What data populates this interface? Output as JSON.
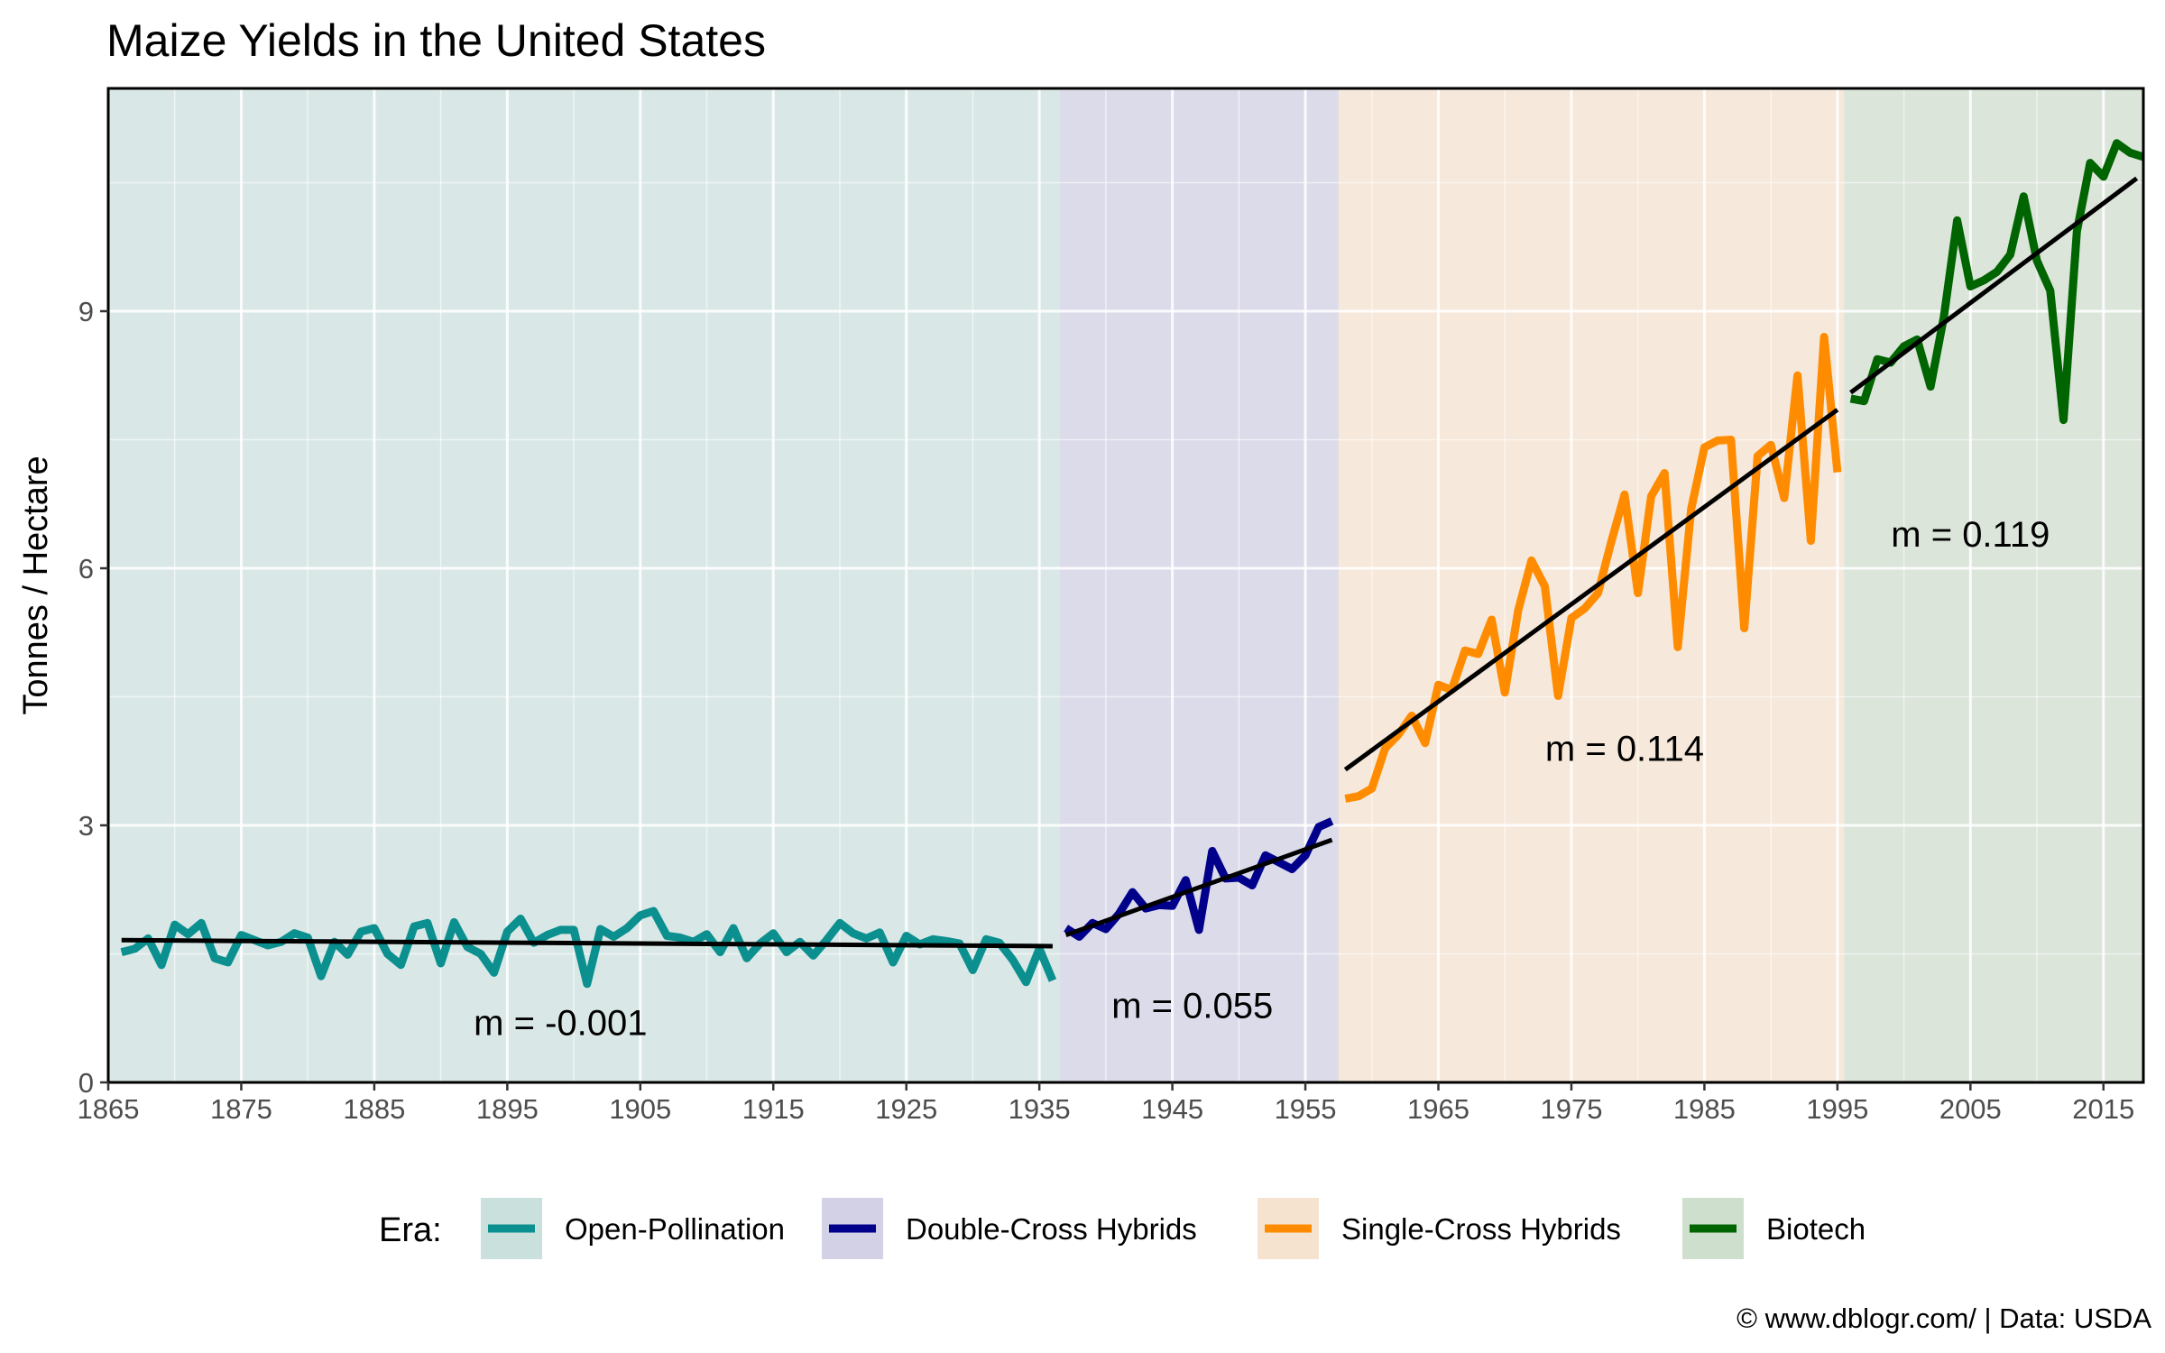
{
  "chart_data": {
    "type": "line",
    "title": "Maize Yields in the United States",
    "xlabel": "",
    "ylabel": "Tonnes / Hectare",
    "xlim": [
      1865,
      2018
    ],
    "ylim": [
      0,
      11.6
    ],
    "x_ticks": [
      1865,
      1875,
      1885,
      1895,
      1905,
      1915,
      1925,
      1935,
      1945,
      1955,
      1965,
      1975,
      1985,
      1995,
      2005,
      2015
    ],
    "y_ticks": [
      0,
      3,
      6,
      9
    ],
    "grid": true,
    "legend_title": "Era:",
    "legend_position": "bottom",
    "caption": "© www.dblogr.com/  |  Data: USDA",
    "eras": [
      {
        "name": "Open-Pollination",
        "start": 1865,
        "end": 1936.5,
        "line_color": "#0b8f8f",
        "bg_color": "#d9e8e6",
        "legend_bg": "#c9e0dd"
      },
      {
        "name": "Double-Cross Hybrids",
        "start": 1936.5,
        "end": 1957.5,
        "line_color": "#00008b",
        "bg_color": "#dcdbea",
        "legend_bg": "#d2d1e5"
      },
      {
        "name": "Single-Cross Hybrids",
        "start": 1957.5,
        "end": 1995.5,
        "line_color": "#ff8c00",
        "bg_color": "#f6e8da",
        "legend_bg": "#f5e3d0"
      },
      {
        "name": "Biotech",
        "start": 1995.5,
        "end": 2018,
        "line_color": "#006400",
        "bg_color": "#dbe5da",
        "legend_bg": "#cfdfce"
      }
    ],
    "series": [
      {
        "name": "Open-Pollination",
        "x": [
          1866,
          1867,
          1868,
          1869,
          1870,
          1871,
          1872,
          1873,
          1874,
          1875,
          1876,
          1877,
          1878,
          1879,
          1880,
          1881,
          1882,
          1883,
          1884,
          1885,
          1886,
          1887,
          1888,
          1889,
          1890,
          1891,
          1892,
          1893,
          1894,
          1895,
          1896,
          1897,
          1898,
          1899,
          1900,
          1901,
          1902,
          1903,
          1904,
          1905,
          1906,
          1907,
          1908,
          1909,
          1910,
          1911,
          1912,
          1913,
          1914,
          1915,
          1916,
          1917,
          1918,
          1919,
          1920,
          1921,
          1922,
          1923,
          1924,
          1925,
          1926,
          1927,
          1928,
          1929,
          1930,
          1931,
          1932,
          1933,
          1934,
          1935,
          1936
        ],
        "values": [
          1.52,
          1.56,
          1.68,
          1.37,
          1.84,
          1.73,
          1.86,
          1.45,
          1.4,
          1.72,
          1.66,
          1.6,
          1.64,
          1.74,
          1.69,
          1.24,
          1.64,
          1.49,
          1.76,
          1.8,
          1.5,
          1.37,
          1.82,
          1.86,
          1.39,
          1.87,
          1.58,
          1.5,
          1.28,
          1.76,
          1.91,
          1.63,
          1.72,
          1.78,
          1.78,
          1.15,
          1.79,
          1.7,
          1.8,
          1.95,
          2.0,
          1.71,
          1.69,
          1.64,
          1.73,
          1.52,
          1.8,
          1.45,
          1.62,
          1.74,
          1.52,
          1.64,
          1.48,
          1.66,
          1.86,
          1.74,
          1.68,
          1.75,
          1.4,
          1.71,
          1.61,
          1.67,
          1.65,
          1.62,
          1.31,
          1.67,
          1.63,
          1.43,
          1.17,
          1.56,
          1.19
        ]
      },
      {
        "name": "Double-Cross Hybrids",
        "x": [
          1937,
          1938,
          1939,
          1940,
          1941,
          1942,
          1943,
          1944,
          1945,
          1946,
          1947,
          1948,
          1949,
          1950,
          1951,
          1952,
          1953,
          1954,
          1955,
          1956,
          1957
        ],
        "values": [
          1.8,
          1.7,
          1.86,
          1.79,
          1.97,
          2.22,
          2.03,
          2.07,
          2.06,
          2.36,
          1.78,
          2.7,
          2.38,
          2.39,
          2.3,
          2.65,
          2.57,
          2.49,
          2.65,
          2.98,
          3.05
        ]
      },
      {
        "name": "Single-Cross Hybrids",
        "x": [
          1958,
          1959,
          1960,
          1961,
          1962,
          1963,
          1964,
          1965,
          1966,
          1967,
          1968,
          1969,
          1970,
          1971,
          1972,
          1973,
          1974,
          1975,
          1976,
          1977,
          1978,
          1979,
          1980,
          1981,
          1982,
          1983,
          1984,
          1985,
          1986,
          1987,
          1988,
          1989,
          1990,
          1991,
          1992,
          1993,
          1994,
          1995
        ],
        "values": [
          3.31,
          3.34,
          3.43,
          3.9,
          4.06,
          4.28,
          3.96,
          4.64,
          4.58,
          5.04,
          5.0,
          5.4,
          4.55,
          5.51,
          6.09,
          5.79,
          4.51,
          5.42,
          5.53,
          5.71,
          6.31,
          6.86,
          5.71,
          6.84,
          7.11,
          5.08,
          6.69,
          7.41,
          7.49,
          7.5,
          5.3,
          7.31,
          7.44,
          6.82,
          8.25,
          6.32,
          8.7,
          7.12
        ]
      },
      {
        "name": "Biotech",
        "x": [
          1996,
          1997,
          1998,
          1999,
          2000,
          2001,
          2002,
          2003,
          2004,
          2005,
          2006,
          2007,
          2008,
          2009,
          2010,
          2011,
          2012,
          2013,
          2014,
          2015,
          2016,
          2017,
          2018
        ],
        "values": [
          7.98,
          7.95,
          8.44,
          8.4,
          8.59,
          8.67,
          8.12,
          8.93,
          10.06,
          9.29,
          9.36,
          9.46,
          9.66,
          10.34,
          9.59,
          9.24,
          7.73,
          9.93,
          10.73,
          10.57,
          10.96,
          10.85,
          10.8
        ]
      }
    ],
    "trendlines": [
      {
        "era": "Open-Pollination",
        "x": [
          1866,
          1936
        ],
        "y": [
          1.66,
          1.59
        ],
        "label": "m = -0.001",
        "label_x": 1899,
        "label_y": 0.7
      },
      {
        "era": "Double-Cross Hybrids",
        "x": [
          1937,
          1957
        ],
        "y": [
          1.72,
          2.83
        ],
        "label": "m = 0.055",
        "label_x": 1946.5,
        "label_y": 0.9
      },
      {
        "era": "Single-Cross Hybrids",
        "x": [
          1958,
          1995
        ],
        "y": [
          3.65,
          7.85
        ],
        "label": "m = 0.114",
        "label_x": 1979,
        "label_y": 3.9
      },
      {
        "era": "Biotech",
        "x": [
          1996,
          2017.5
        ],
        "y": [
          8.05,
          10.55
        ],
        "label": "m = 0.119",
        "label_x": 2005,
        "label_y": 6.4
      }
    ]
  }
}
